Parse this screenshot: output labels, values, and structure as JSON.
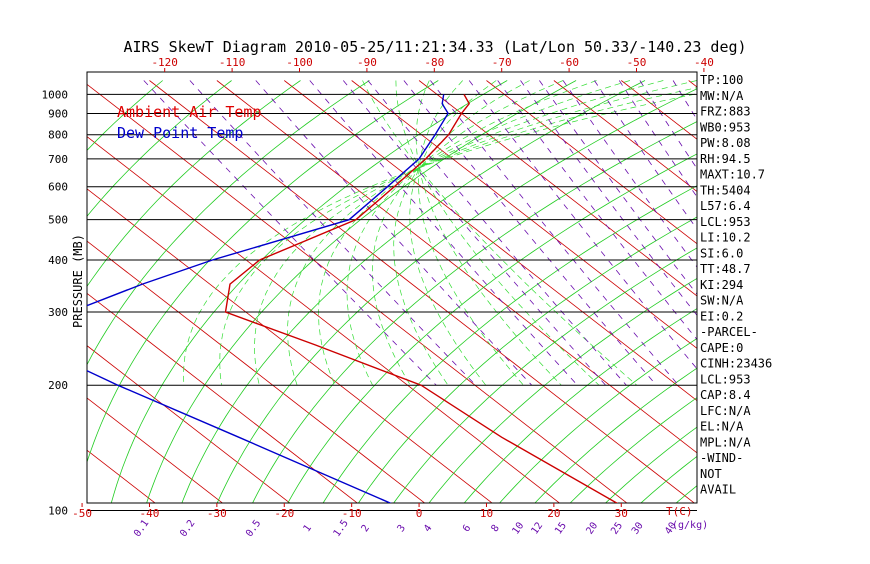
{
  "chart_data": {
    "type": "line",
    "title": "AIRS SkewT Diagram 2010-05-25/11:21:34.33 (Lat/Lon 50.33/-140.23 deg)",
    "ylabel": "PRESSURE (MB)",
    "bottom_unit_t": "T(C)",
    "bottom_unit_mix": "(g/kg)",
    "pressure_ticks": [
      100,
      200,
      300,
      400,
      500,
      600,
      700,
      800,
      900,
      1000
    ],
    "temp_ticks_top": [
      -120,
      -110,
      -100,
      -90,
      -80,
      -70,
      -60,
      -50,
      -40
    ],
    "temp_ticks_bottom": [
      -50,
      -40,
      -30,
      -20,
      -10,
      0,
      10,
      20,
      30
    ],
    "mixing_ratio_labels": [
      "0.1",
      "0.2",
      "0.5",
      "1",
      "1.5",
      "2",
      "3",
      "4",
      "6",
      "8",
      "10",
      "12",
      "15",
      "20",
      "25",
      "30",
      "40"
    ],
    "legend": [
      {
        "label": "Ambient Air Temp",
        "color": "#e00000"
      },
      {
        "label": "Dew Point Temp",
        "color": "#0000cc"
      }
    ],
    "series": [
      {
        "name": "Ambient Air Temp",
        "color": "#cc0000",
        "points": [
          {
            "p": 100,
            "t": -51
          },
          {
            "p": 150,
            "t": -56
          },
          {
            "p": 200,
            "t": -58
          },
          {
            "p": 250,
            "t": -66
          },
          {
            "p": 300,
            "t": -73
          },
          {
            "p": 350,
            "t": -67
          },
          {
            "p": 400,
            "t": -58
          },
          {
            "p": 500,
            "t": -36
          },
          {
            "p": 600,
            "t": -24
          },
          {
            "p": 700,
            "t": -14
          },
          {
            "p": 800,
            "t": -6
          },
          {
            "p": 900,
            "t": 0
          },
          {
            "p": 950,
            "t": 3
          },
          {
            "p": 1000,
            "t": 4
          }
        ]
      },
      {
        "name": "Dew Point Temp",
        "color": "#0000cc",
        "points": [
          {
            "p": 100,
            "t": -84
          },
          {
            "p": 150,
            "t": -95
          },
          {
            "p": 200,
            "t": -103
          },
          {
            "p": 250,
            "t": -108
          },
          {
            "p": 300,
            "t": -96
          },
          {
            "p": 350,
            "t": -80
          },
          {
            "p": 400,
            "t": -65
          },
          {
            "p": 500,
            "t": -37
          },
          {
            "p": 600,
            "t": -25
          },
          {
            "p": 700,
            "t": -15
          },
          {
            "p": 800,
            "t": -8
          },
          {
            "p": 900,
            "t": -2
          },
          {
            "p": 950,
            "t": -1
          },
          {
            "p": 1000,
            "t": 1
          }
        ]
      }
    ],
    "indices": [
      "TP:100",
      "MW:N/A",
      "FRZ:883",
      "WB0:953",
      "PW:8.08",
      "RH:94.5",
      "MAXT:10.7",
      "TH:5404",
      "L57:6.4",
      "LCL:953",
      "LI:10.2",
      "SI:6.0",
      "TT:48.7",
      "KI:294",
      "SW:N/A",
      "EI:0.2",
      "-PARCEL-",
      "CAPE:0",
      "CINH:23436",
      "LCL:953",
      "CAP:8.4",
      "LFC:N/A",
      "EL:N/A",
      "MPL:N/A",
      "-WIND-",
      "NOT",
      "AVAIL"
    ],
    "grid": true,
    "legend_position": "top-left"
  }
}
